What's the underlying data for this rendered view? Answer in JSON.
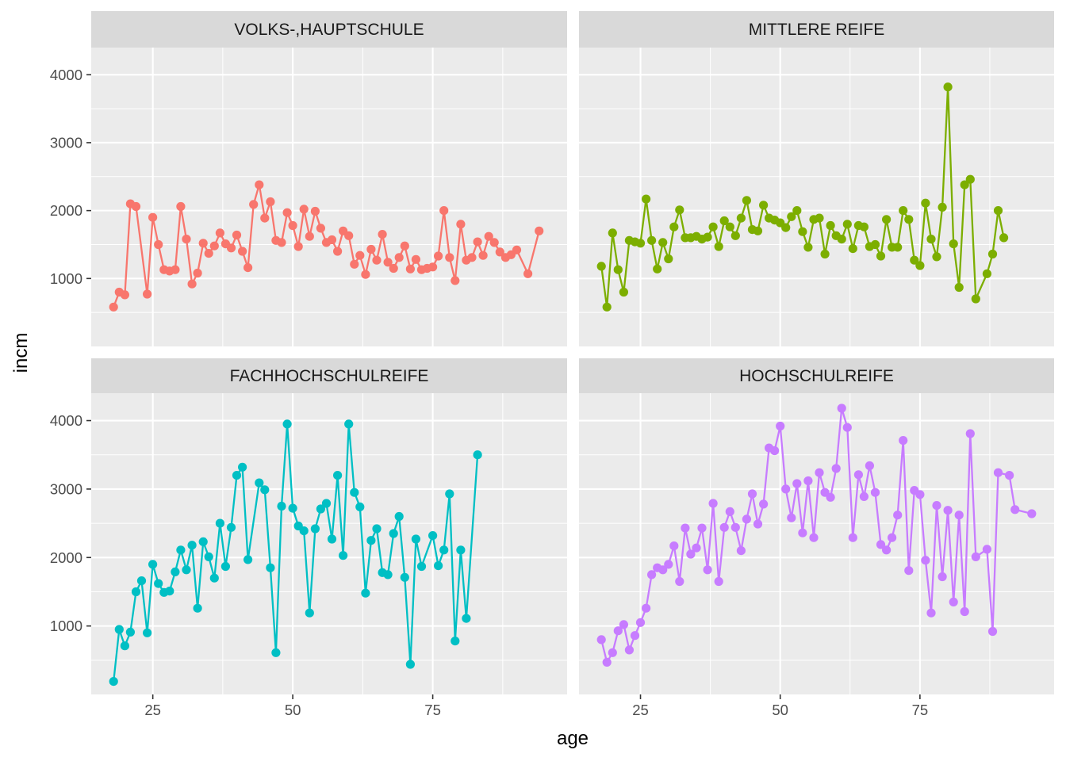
{
  "chart_data": {
    "type": "line",
    "xlabel": "age",
    "ylabel": "incm",
    "xticks": [
      25,
      50,
      75
    ],
    "yticks": [
      1000,
      2000,
      3000,
      4000
    ],
    "xlim": [
      14,
      99
    ],
    "ylim": [
      0,
      4400
    ],
    "marker": "point",
    "panels": [
      {
        "name": "VOLKS-,HAUPTSCHULE",
        "color": "#F8766D",
        "x": [
          18,
          19,
          20,
          21,
          22,
          24,
          25,
          26,
          27,
          28,
          29,
          30,
          31,
          32,
          33,
          34,
          35,
          36,
          37,
          38,
          39,
          40,
          41,
          42,
          43,
          44,
          45,
          46,
          47,
          48,
          49,
          50,
          51,
          52,
          53,
          54,
          55,
          56,
          57,
          58,
          59,
          60,
          61,
          62,
          63,
          64,
          65,
          66,
          67,
          68,
          69,
          70,
          71,
          72,
          73,
          74,
          75,
          76,
          77,
          78,
          79,
          80,
          81,
          82,
          83,
          84,
          85,
          86,
          87,
          88,
          89,
          90,
          92,
          94
        ],
        "y": [
          580,
          800,
          760,
          2100,
          2060,
          770,
          1900,
          1500,
          1130,
          1110,
          1130,
          2060,
          1580,
          920,
          1080,
          1520,
          1370,
          1480,
          1670,
          1510,
          1450,
          1640,
          1400,
          1160,
          2090,
          2380,
          1890,
          2130,
          1560,
          1530,
          1970,
          1780,
          1470,
          2020,
          1620,
          1990,
          1740,
          1530,
          1570,
          1400,
          1700,
          1630,
          1210,
          1340,
          1060,
          1430,
          1270,
          1650,
          1240,
          1150,
          1310,
          1480,
          1140,
          1280,
          1130,
          1150,
          1170,
          1330,
          2000,
          1310,
          970,
          1800,
          1270,
          1310,
          1540,
          1340,
          1620,
          1530,
          1390,
          1310,
          1350,
          1420,
          1070,
          1700
        ]
      },
      {
        "name": "MITTLERE REIFE",
        "color": "#7CAE00",
        "x": [
          18,
          19,
          20,
          21,
          22,
          23,
          24,
          25,
          26,
          27,
          28,
          29,
          30,
          31,
          32,
          33,
          34,
          35,
          36,
          37,
          38,
          39,
          40,
          41,
          42,
          43,
          44,
          45,
          46,
          47,
          48,
          49,
          50,
          51,
          52,
          53,
          54,
          55,
          56,
          57,
          58,
          59,
          60,
          61,
          62,
          63,
          64,
          65,
          66,
          67,
          68,
          69,
          70,
          71,
          72,
          73,
          74,
          75,
          76,
          77,
          78,
          79,
          80,
          81,
          82,
          83,
          84,
          85,
          87,
          88,
          89,
          90
        ],
        "y": [
          1180,
          580,
          1670,
          1130,
          800,
          1560,
          1540,
          1520,
          2170,
          1560,
          1140,
          1530,
          1290,
          1760,
          2010,
          1600,
          1600,
          1620,
          1580,
          1610,
          1760,
          1470,
          1850,
          1760,
          1630,
          1890,
          2150,
          1720,
          1700,
          2080,
          1890,
          1860,
          1820,
          1750,
          1910,
          2000,
          1690,
          1460,
          1870,
          1890,
          1360,
          1780,
          1630,
          1580,
          1800,
          1440,
          1780,
          1760,
          1470,
          1500,
          1330,
          1870,
          1460,
          1460,
          2000,
          1870,
          1270,
          1190,
          2110,
          1580,
          1320,
          2050,
          3820,
          1510,
          870,
          2380,
          2460,
          700,
          1070,
          1360,
          2000,
          1600
        ]
      },
      {
        "name": "FACHHOCHSCHULREIFE",
        "color": "#00BFC4",
        "x": [
          18,
          19,
          20,
          21,
          22,
          23,
          24,
          25,
          26,
          27,
          28,
          29,
          30,
          31,
          32,
          33,
          34,
          35,
          36,
          37,
          38,
          39,
          40,
          41,
          42,
          44,
          45,
          46,
          47,
          48,
          49,
          50,
          51,
          52,
          53,
          54,
          55,
          56,
          57,
          58,
          59,
          60,
          61,
          62,
          63,
          64,
          65,
          66,
          67,
          68,
          69,
          70,
          71,
          72,
          73,
          75,
          76,
          77,
          78,
          79,
          80,
          81,
          83
        ],
        "y": [
          190,
          950,
          710,
          910,
          1500,
          1660,
          900,
          1900,
          1620,
          1490,
          1510,
          1790,
          2110,
          1820,
          2180,
          1260,
          2230,
          2010,
          1700,
          2500,
          1870,
          2440,
          3200,
          3320,
          1970,
          3090,
          2990,
          1850,
          610,
          2750,
          3950,
          2720,
          2460,
          2390,
          1190,
          2420,
          2710,
          2790,
          2270,
          3200,
          2030,
          3950,
          2950,
          2740,
          1480,
          2250,
          2420,
          1780,
          1750,
          2350,
          2600,
          1710,
          440,
          2270,
          1870,
          2320,
          1880,
          2110,
          2930,
          780,
          2110,
          1110,
          3500
        ]
      },
      {
        "name": "HOCHSCHULREIFE",
        "color": "#C77CFF",
        "x": [
          18,
          19,
          20,
          21,
          22,
          23,
          24,
          25,
          26,
          27,
          28,
          29,
          30,
          31,
          32,
          33,
          34,
          35,
          36,
          37,
          38,
          39,
          40,
          41,
          42,
          43,
          44,
          45,
          46,
          47,
          48,
          49,
          50,
          51,
          52,
          53,
          54,
          55,
          56,
          57,
          58,
          59,
          60,
          61,
          62,
          63,
          64,
          65,
          66,
          67,
          68,
          69,
          70,
          71,
          72,
          73,
          74,
          75,
          76,
          77,
          78,
          79,
          80,
          81,
          82,
          83,
          84,
          85,
          87,
          88,
          89,
          91,
          92,
          95
        ],
        "y": [
          800,
          470,
          610,
          930,
          1020,
          650,
          860,
          1050,
          1260,
          1750,
          1850,
          1820,
          1900,
          2170,
          1650,
          2430,
          2050,
          2140,
          2430,
          1820,
          2790,
          1650,
          2440,
          2670,
          2440,
          2100,
          2560,
          2930,
          2490,
          2780,
          3600,
          3560,
          3920,
          3000,
          2580,
          3080,
          2360,
          3120,
          2290,
          3240,
          2950,
          2880,
          3300,
          4180,
          3900,
          2290,
          3210,
          2890,
          3340,
          2950,
          2190,
          2110,
          2290,
          2620,
          3710,
          1810,
          2980,
          2920,
          1960,
          1190,
          2760,
          1720,
          2690,
          1350,
          2620,
          1210,
          3810,
          2010,
          2120,
          920,
          3240,
          3200,
          2700,
          2640
        ]
      }
    ]
  }
}
